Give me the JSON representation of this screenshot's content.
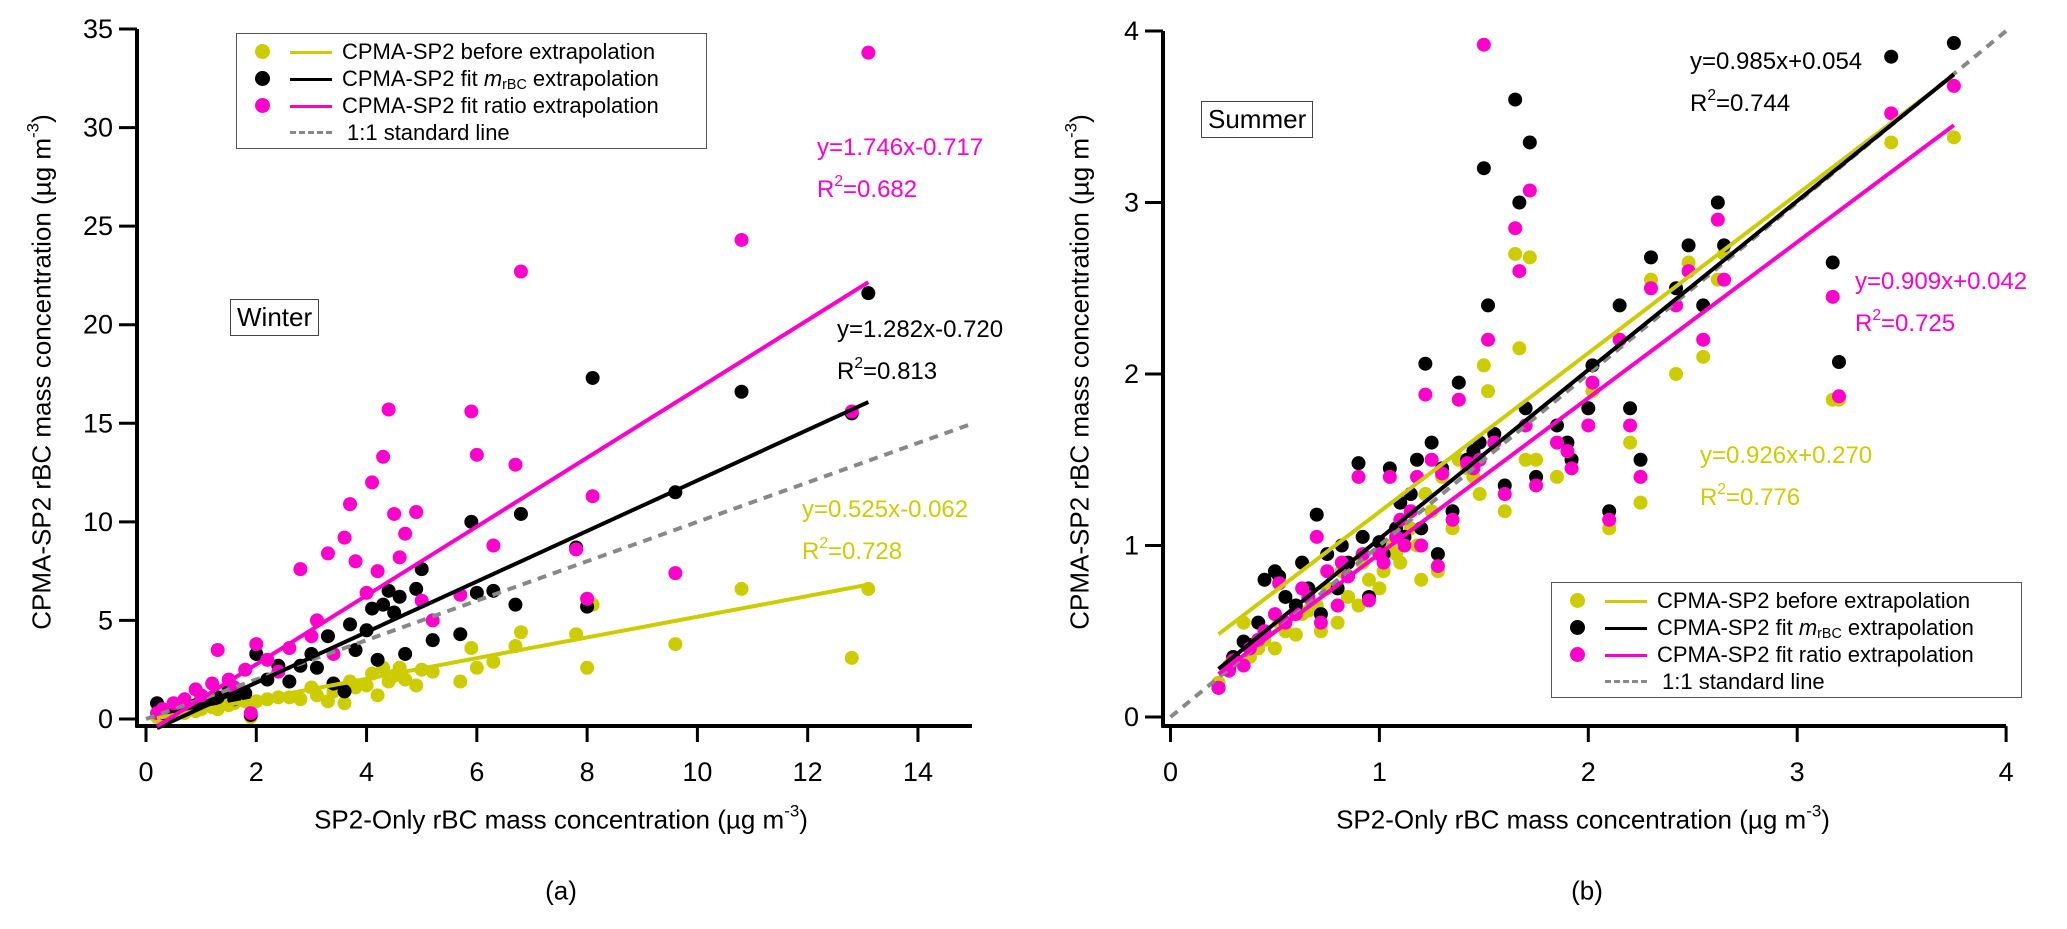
{
  "colors": {
    "before": "#cccc00",
    "mrbc": "#000000",
    "ratio": "#ff00cc",
    "one_to_one": "#888888"
  },
  "legend": {
    "before": {
      "text": "CPMA-SP2  before  extrapolation"
    },
    "mrbc": {
      "prefix": "CPMA-SP2  fit ",
      "italic": "m",
      "sub": "rBC",
      "suffix": " extrapolation"
    },
    "ratio": {
      "text": "CPMA-SP2  fit ratio extrapolation"
    },
    "one_to_one": {
      "text": "1:1  standard line"
    }
  },
  "axis_titles": {
    "y": {
      "main": "CPMA-SP2 rBC mass concentration (µg m",
      "sup": "-3",
      "close": ")"
    },
    "x": {
      "main": "SP2-Only rBC mass concentration (µg m",
      "sup": "-3",
      "close": ")"
    }
  },
  "chart_data": [
    {
      "type": "scatter",
      "panel_label": "(a)",
      "season": "Winter",
      "xlim": [
        0,
        15
      ],
      "ylim": [
        0,
        35
      ],
      "x_ticks": [
        0,
        2,
        4,
        6,
        8,
        10,
        12,
        14
      ],
      "y_ticks": [
        0,
        5,
        10,
        15,
        20,
        25,
        30,
        35
      ],
      "legend_position": "top-center",
      "x": [
        0.2,
        0.3,
        0.5,
        0.7,
        0.9,
        1.0,
        1.2,
        1.3,
        1.5,
        1.6,
        1.8,
        1.9,
        2.0,
        2.2,
        2.4,
        2.6,
        2.8,
        3.0,
        3.1,
        3.3,
        3.4,
        3.6,
        3.7,
        3.8,
        4.0,
        4.1,
        4.2,
        4.3,
        4.4,
        4.5,
        4.6,
        4.7,
        4.9,
        5.0,
        5.2,
        5.7,
        5.9,
        6.0,
        6.3,
        6.8,
        6.7,
        7.8,
        8.0,
        8.1,
        9.6,
        10.8,
        12.8,
        13.1
      ],
      "series": [
        {
          "key": "before",
          "y": [
            0.1,
            0.2,
            0.3,
            0.3,
            0.4,
            0.5,
            0.6,
            0.5,
            0.7,
            0.8,
            0.9,
            0.1,
            0.9,
            1.0,
            1.1,
            1.1,
            1.0,
            1.6,
            1.2,
            0.9,
            1.4,
            0.8,
            1.9,
            1.6,
            1.7,
            2.3,
            1.2,
            2.6,
            1.9,
            2.2,
            2.6,
            2.0,
            1.7,
            2.5,
            2.4,
            1.9,
            3.6,
            2.6,
            2.9,
            4.4,
            3.7,
            4.3,
            2.6,
            5.8,
            3.8,
            6.6,
            3.1,
            6.6
          ],
          "fit": {
            "slope": 0.525,
            "intercept": -0.062,
            "x_range": [
              0.2,
              13.1
            ],
            "equation": "y=0.525x-0.062",
            "r2_base": "R",
            "r2_sup": "2",
            "r2_value": "=0.728"
          }
        },
        {
          "key": "mrbc",
          "y": [
            0.8,
            0.3,
            0.5,
            0.6,
            0.7,
            0.8,
            0.9,
            1.1,
            1.5,
            1.0,
            1.3,
            0.2,
            3.3,
            2.0,
            2.7,
            1.9,
            2.7,
            3.3,
            2.6,
            4.2,
            1.8,
            1.4,
            4.8,
            3.5,
            4.5,
            5.6,
            3.0,
            5.8,
            6.5,
            5.4,
            6.2,
            3.3,
            6.6,
            7.6,
            4.0,
            4.3,
            10.0,
            6.4,
            6.5,
            10.4,
            5.8,
            8.7,
            5.7,
            17.3,
            11.5,
            16.6,
            15.5,
            21.6
          ],
          "fit": {
            "slope": 1.282,
            "intercept": -0.72,
            "x_range": [
              0.2,
              13.1
            ],
            "equation": "y=1.282x-0.720",
            "r2_base": "R",
            "r2_sup": "2",
            "r2_value": "=0.813"
          }
        },
        {
          "key": "ratio",
          "y": [
            0.3,
            0.5,
            0.8,
            1.0,
            1.5,
            1.2,
            1.8,
            3.5,
            2.0,
            1.6,
            2.5,
            0.3,
            3.8,
            3.0,
            2.4,
            3.6,
            7.6,
            4.2,
            5.0,
            8.4,
            3.3,
            9.2,
            10.9,
            8.0,
            6.4,
            12.0,
            7.5,
            13.3,
            15.7,
            10.4,
            8.2,
            9.4,
            10.5,
            6.0,
            5.0,
            6.3,
            15.6,
            13.4,
            8.8,
            22.7,
            12.9,
            8.6,
            6.1,
            11.3,
            7.4,
            24.3,
            15.6,
            33.8
          ],
          "fit": {
            "slope": 1.746,
            "intercept": -0.717,
            "x_range": [
              0.2,
              13.1
            ],
            "equation": "y=1.746x-0.717",
            "r2_base": "R",
            "r2_sup": "2",
            "r2_value": "=0.682"
          }
        }
      ],
      "one_to_one_range": [
        0,
        15
      ]
    },
    {
      "type": "scatter",
      "panel_label": "(b)",
      "season": "Summer",
      "xlim": [
        0,
        4
      ],
      "ylim": [
        0,
        4
      ],
      "x_ticks": [
        0,
        1,
        2,
        3,
        4
      ],
      "y_ticks": [
        0,
        1,
        2,
        3,
        4
      ],
      "legend_position": "bottom-right",
      "x": [
        0.23,
        0.28,
        0.3,
        0.35,
        0.38,
        0.42,
        0.45,
        0.5,
        0.52,
        0.55,
        0.6,
        0.63,
        0.66,
        0.7,
        0.72,
        0.75,
        0.8,
        0.82,
        0.85,
        0.9,
        0.92,
        0.95,
        1.0,
        1.02,
        1.05,
        1.08,
        1.1,
        1.12,
        1.15,
        1.18,
        1.2,
        1.22,
        1.25,
        1.28,
        1.3,
        1.35,
        1.38,
        1.42,
        1.45,
        1.48,
        1.5,
        1.52,
        1.55,
        1.6,
        1.65,
        1.67,
        1.72,
        1.7,
        1.75,
        1.85,
        1.9,
        1.92,
        2.0,
        2.02,
        2.1,
        2.15,
        2.2,
        2.25,
        2.3,
        2.42,
        2.48,
        2.55,
        2.62,
        2.65,
        3.17,
        3.2,
        3.45,
        3.75
      ],
      "series": [
        {
          "key": "before",
          "y": [
            0.2,
            0.3,
            0.35,
            0.55,
            0.35,
            0.4,
            0.45,
            0.4,
            0.55,
            0.5,
            0.48,
            0.6,
            0.62,
            0.65,
            0.5,
            0.75,
            0.55,
            0.85,
            0.7,
            0.65,
            0.9,
            0.8,
            0.75,
            0.85,
            1.0,
            0.95,
            0.9,
            1.0,
            1.1,
            1.0,
            0.8,
            1.3,
            1.2,
            0.85,
            1.4,
            1.1,
            1.5,
            1.45,
            1.4,
            1.3,
            2.05,
            1.9,
            1.6,
            1.2,
            2.7,
            2.15,
            2.68,
            1.5,
            1.5,
            1.4,
            1.6,
            1.5,
            1.8,
            1.9,
            1.1,
            2.2,
            1.6,
            1.25,
            2.55,
            2.0,
            2.65,
            2.1,
            2.55,
            2.7,
            1.85,
            1.85,
            3.35,
            3.38
          ],
          "fit": {
            "slope": 0.926,
            "intercept": 0.27,
            "x_range": [
              0.23,
              3.75
            ],
            "equation": "y=0.926x+0.270",
            "r2_base": "R",
            "r2_sup": "2",
            "r2_value": "=0.776"
          }
        },
        {
          "key": "mrbc",
          "y": [
            0.17,
            0.28,
            0.35,
            0.44,
            0.42,
            0.55,
            0.8,
            0.85,
            0.82,
            0.7,
            0.65,
            0.9,
            0.75,
            1.18,
            0.6,
            0.95,
            0.75,
            1.0,
            0.9,
            1.48,
            1.05,
            0.7,
            1.02,
            0.95,
            1.45,
            1.1,
            1.25,
            1.05,
            1.3,
            1.5,
            1.1,
            2.06,
            1.6,
            0.95,
            1.45,
            1.2,
            1.95,
            1.5,
            1.55,
            1.6,
            3.2,
            2.4,
            1.65,
            1.35,
            3.6,
            3.0,
            3.35,
            1.8,
            1.4,
            1.7,
            1.6,
            1.5,
            1.8,
            2.05,
            1.2,
            2.4,
            1.8,
            1.5,
            2.68,
            2.5,
            2.75,
            2.4,
            3.0,
            2.75,
            2.65,
            2.07,
            3.85,
            3.93
          ],
          "fit": {
            "slope": 0.985,
            "intercept": 0.054,
            "x_range": [
              0.23,
              3.75
            ],
            "equation": "y=0.985x+0.054",
            "r2_base": "R",
            "r2_sup": "2",
            "r2_value": "=0.744"
          }
        },
        {
          "key": "ratio",
          "y": [
            0.17,
            0.27,
            0.33,
            0.3,
            0.4,
            0.45,
            0.5,
            0.6,
            0.78,
            0.55,
            0.6,
            0.75,
            0.7,
            1.05,
            0.55,
            0.85,
            0.65,
            0.9,
            0.82,
            1.4,
            0.95,
            0.68,
            0.95,
            0.9,
            1.4,
            1.05,
            1.15,
            1.0,
            1.2,
            1.4,
            1.0,
            1.88,
            1.5,
            0.88,
            1.42,
            1.15,
            1.85,
            1.48,
            1.45,
            1.5,
            3.92,
            2.2,
            1.6,
            1.3,
            2.85,
            2.6,
            3.07,
            1.7,
            1.35,
            1.6,
            1.55,
            1.45,
            1.7,
            1.95,
            1.15,
            2.2,
            1.7,
            1.4,
            2.5,
            2.4,
            2.6,
            2.2,
            2.9,
            2.55,
            2.45,
            1.87,
            3.52,
            3.68
          ],
          "fit": {
            "slope": 0.909,
            "intercept": 0.042,
            "x_range": [
              0.23,
              3.75
            ],
            "equation": "y=0.909x+0.042",
            "r2_base": "R",
            "r2_sup": "2",
            "r2_value": "=0.725"
          }
        }
      ],
      "one_to_one_range": [
        0,
        4
      ]
    }
  ]
}
